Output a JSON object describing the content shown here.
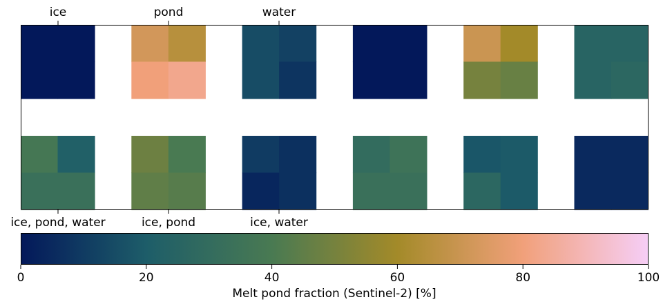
{
  "chart_data": [
    {
      "type": "heatmap",
      "top_tick_labels": [
        "ice",
        "pond",
        "water"
      ],
      "bottom_tick_labels": [
        "ice, pond, water",
        "ice, pond",
        "ice, water"
      ],
      "grid": false,
      "blocks_top": [
        [
          [
            0,
            0
          ],
          [
            0,
            0
          ]
        ],
        [
          [
            72,
            65
          ],
          [
            80,
            83
          ]
        ],
        [
          [
            15,
            12
          ],
          [
            15,
            8
          ]
        ],
        [
          [
            0,
            0
          ],
          [
            0,
            0
          ]
        ],
        [
          [
            70,
            60
          ],
          [
            50,
            47
          ]
        ],
        [
          [
            25,
            25
          ],
          [
            25,
            27
          ]
        ]
      ],
      "blocks_bottom": [
        [
          [
            38,
            22
          ],
          [
            33,
            33
          ]
        ],
        [
          [
            48,
            40
          ],
          [
            45,
            43
          ]
        ],
        [
          [
            10,
            7
          ],
          [
            4,
            7
          ]
        ],
        [
          [
            30,
            35
          ],
          [
            33,
            33
          ]
        ],
        [
          [
            18,
            19
          ],
          [
            27,
            19
          ]
        ],
        [
          [
            5,
            5
          ],
          [
            5,
            5
          ]
        ]
      ]
    },
    {
      "type": "colorbar",
      "xlabel": "Melt pond fraction (Sentinel-2) [%]",
      "xlim": [
        0,
        100
      ],
      "ticks": [
        0,
        20,
        40,
        60,
        80,
        100
      ],
      "colormap": [
        "#03185a",
        "#1d5d69",
        "#497a52",
        "#a38a29",
        "#f1a07a",
        "#f6cef6"
      ]
    }
  ]
}
